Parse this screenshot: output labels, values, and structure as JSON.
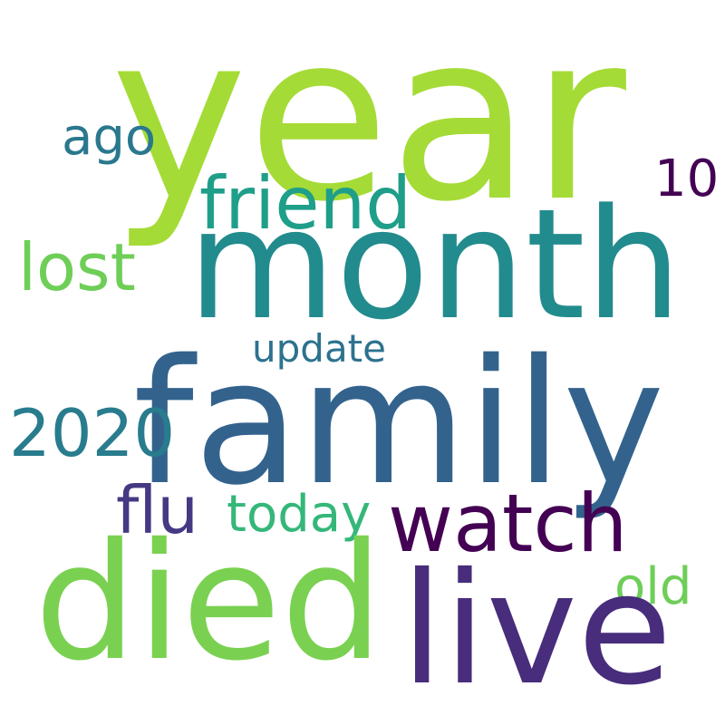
{
  "words": {
    "year": {
      "text": "year",
      "color": "#a5db36"
    },
    "month": {
      "text": "month",
      "color": "#228b8d"
    },
    "family": {
      "text": "family",
      "color": "#33638d"
    },
    "died": {
      "text": "died",
      "color": "#7ad151"
    },
    "live": {
      "text": "live",
      "color": "#472d7b"
    },
    "watch": {
      "text": "watch",
      "color": "#440154"
    },
    "friend": {
      "text": "friend",
      "color": "#1f9e89"
    },
    "lost": {
      "text": "lost",
      "color": "#6ece58"
    },
    "2020": {
      "text": "2020",
      "color": "#287c8e"
    },
    "flu": {
      "text": "flu",
      "color": "#443983"
    },
    "today": {
      "text": "today",
      "color": "#35b779"
    },
    "ago": {
      "text": "ago",
      "color": "#2a788e"
    },
    "10": {
      "text": "10",
      "color": "#440154"
    },
    "update": {
      "text": "update",
      "color": "#2c728e"
    },
    "old": {
      "text": "old",
      "color": "#6ece58"
    }
  }
}
